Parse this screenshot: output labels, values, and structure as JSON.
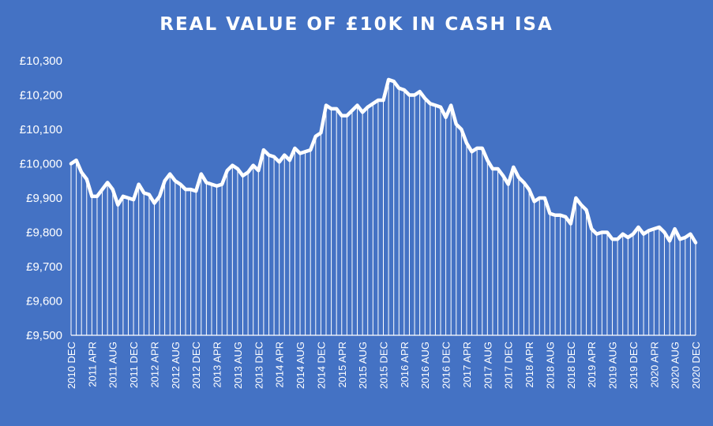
{
  "chart_data": {
    "type": "line",
    "title": "REAL VALUE OF £10K IN CASH ISA",
    "xlabel": "",
    "ylabel": "",
    "ylim": [
      9500,
      10300
    ],
    "y_ticks": [
      "£9,500",
      "£9,600",
      "£9,700",
      "£9,800",
      "£9,900",
      "£10,000",
      "£10,100",
      "£10,200",
      "£10,300"
    ],
    "x_ticks": [
      "2010 DEC",
      "2011 APR",
      "2011 AUG",
      "2011 DEC",
      "2012 APR",
      "2012 AUG",
      "2012 DEC",
      "2013 APR",
      "2013 AUG",
      "2013 DEC",
      "2014 APR",
      "2014 AUG",
      "2014 DEC",
      "2015 APR",
      "2015 AUG",
      "2015 DEC",
      "2016 APR",
      "2016 AUG",
      "2016 DEC",
      "2017 APR",
      "2017 AUG",
      "2017 DEC",
      "2018 APR",
      "2018 AUG",
      "2018 DEC",
      "2019 APR",
      "2019 AUG",
      "2019 DEC",
      "2020 APR",
      "2020 AUG",
      "2020 DEC"
    ],
    "x": [
      "2010-12",
      "2011-01",
      "2011-02",
      "2011-03",
      "2011-04",
      "2011-05",
      "2011-06",
      "2011-07",
      "2011-08",
      "2011-09",
      "2011-10",
      "2011-11",
      "2011-12",
      "2012-01",
      "2012-02",
      "2012-03",
      "2012-04",
      "2012-05",
      "2012-06",
      "2012-07",
      "2012-08",
      "2012-09",
      "2012-10",
      "2012-11",
      "2012-12",
      "2013-01",
      "2013-02",
      "2013-03",
      "2013-04",
      "2013-05",
      "2013-06",
      "2013-07",
      "2013-08",
      "2013-09",
      "2013-10",
      "2013-11",
      "2013-12",
      "2014-01",
      "2014-02",
      "2014-03",
      "2014-04",
      "2014-05",
      "2014-06",
      "2014-07",
      "2014-08",
      "2014-09",
      "2014-10",
      "2014-11",
      "2014-12",
      "2015-01",
      "2015-02",
      "2015-03",
      "2015-04",
      "2015-05",
      "2015-06",
      "2015-07",
      "2015-08",
      "2015-09",
      "2015-10",
      "2015-11",
      "2015-12",
      "2016-01",
      "2016-02",
      "2016-03",
      "2016-04",
      "2016-05",
      "2016-06",
      "2016-07",
      "2016-08",
      "2016-09",
      "2016-10",
      "2016-11",
      "2016-12",
      "2017-01",
      "2017-02",
      "2017-03",
      "2017-04",
      "2017-05",
      "2017-06",
      "2017-07",
      "2017-08",
      "2017-09",
      "2017-10",
      "2017-11",
      "2017-12",
      "2018-01",
      "2018-02",
      "2018-03",
      "2018-04",
      "2018-05",
      "2018-06",
      "2018-07",
      "2018-08",
      "2018-09",
      "2018-10",
      "2018-11",
      "2018-12",
      "2019-01",
      "2019-02",
      "2019-03",
      "2019-04",
      "2019-05",
      "2019-06",
      "2019-07",
      "2019-08",
      "2019-09",
      "2019-10",
      "2019-11",
      "2019-12",
      "2020-01",
      "2020-02",
      "2020-03",
      "2020-04",
      "2020-05",
      "2020-06",
      "2020-07",
      "2020-08",
      "2020-09",
      "2020-10",
      "2020-11",
      "2020-12"
    ],
    "series": [
      {
        "values": [
          10000,
          10010,
          9975,
          9955,
          9905,
          9905,
          9925,
          9945,
          9925,
          9880,
          9905,
          9900,
          9895,
          9940,
          9915,
          9910,
          9885,
          9905,
          9950,
          9970,
          9950,
          9940,
          9925,
          9925,
          9920,
          9970,
          9945,
          9940,
          9935,
          9940,
          9980,
          9995,
          9985,
          9965,
          9975,
          9995,
          9980,
          10040,
          10025,
          10020,
          10005,
          10025,
          10010,
          10045,
          10030,
          10035,
          10040,
          10080,
          10090,
          10170,
          10160,
          10160,
          10140,
          10140,
          10155,
          10170,
          10150,
          10165,
          10175,
          10185,
          10185,
          10245,
          10240,
          10220,
          10215,
          10200,
          10200,
          10210,
          10190,
          10175,
          10170,
          10165,
          10135,
          10170,
          10115,
          10100,
          10060,
          10035,
          10045,
          10045,
          10010,
          9985,
          9985,
          9965,
          9940,
          9990,
          9960,
          9945,
          9925,
          9890,
          9900,
          9900,
          9855,
          9850,
          9850,
          9845,
          9825,
          9900,
          9880,
          9865,
          9810,
          9795,
          9800,
          9800,
          9780,
          9780,
          9795,
          9785,
          9795,
          9815,
          9795,
          9805,
          9810,
          9815,
          9800,
          9775,
          9810,
          9780,
          9785,
          9795,
          9770
        ],
        "color": "#ffffff"
      }
    ],
    "grid": false,
    "legend": "none",
    "colors": {
      "background": "#4472C4",
      "line": "#ffffff",
      "drop_lines": "#ffffff",
      "text": "#ffffff"
    }
  }
}
